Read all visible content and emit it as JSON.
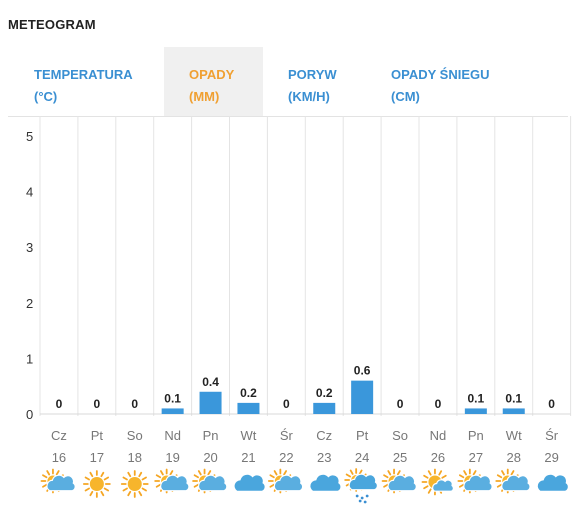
{
  "header": {
    "title": "METEOGRAM"
  },
  "tabs": [
    {
      "line1": "TEMPERATURA",
      "line2": "(°C)",
      "active": false
    },
    {
      "line1": "OPADY",
      "line2": "(MM)",
      "active": true
    },
    {
      "line1": "PORYW",
      "line2": "(KM/H)",
      "active": false
    },
    {
      "line1": "OPADY ŚNIEGU",
      "line2": "(CM)",
      "active": false
    }
  ],
  "colors": {
    "accent_active": "#f0a032",
    "tab_text": "#3a8fd2",
    "bar": "#3a97db",
    "grid": "#e4e4e4"
  },
  "chart_data": {
    "type": "bar",
    "ylim": [
      0,
      5
    ],
    "yticks": [
      "0",
      "1",
      "2",
      "3",
      "4",
      "5"
    ],
    "categories": [
      "Cz",
      "Pt",
      "So",
      "Nd",
      "Pn",
      "Wt",
      "Śr",
      "Cz",
      "Pt",
      "So",
      "Nd",
      "Pn",
      "Wt",
      "Śr"
    ],
    "dates": [
      "16",
      "17",
      "18",
      "19",
      "20",
      "21",
      "22",
      "23",
      "24",
      "25",
      "26",
      "27",
      "28",
      "29"
    ],
    "values": [
      0,
      0,
      0,
      0.1,
      0.4,
      0.2,
      0,
      0.2,
      0.6,
      0,
      0,
      0.1,
      0.1,
      0
    ],
    "value_labels": [
      "0",
      "0",
      "0",
      "0.1",
      "0.4",
      "0.2",
      "0",
      "0.2",
      "0.6",
      "0",
      "0",
      "0.1",
      "0.1",
      "0"
    ],
    "icons": [
      "partly-cloudy-icon",
      "sun-icon",
      "sun-icon",
      "partly-cloudy-icon",
      "partly-cloudy-icon",
      "cloud-icon",
      "partly-cloudy-icon",
      "cloud-icon",
      "rain-cloud-icon",
      "partly-cloudy-icon",
      "sun-cloud-icon",
      "partly-cloudy-icon",
      "partly-cloudy-icon",
      "cloud-icon"
    ]
  }
}
